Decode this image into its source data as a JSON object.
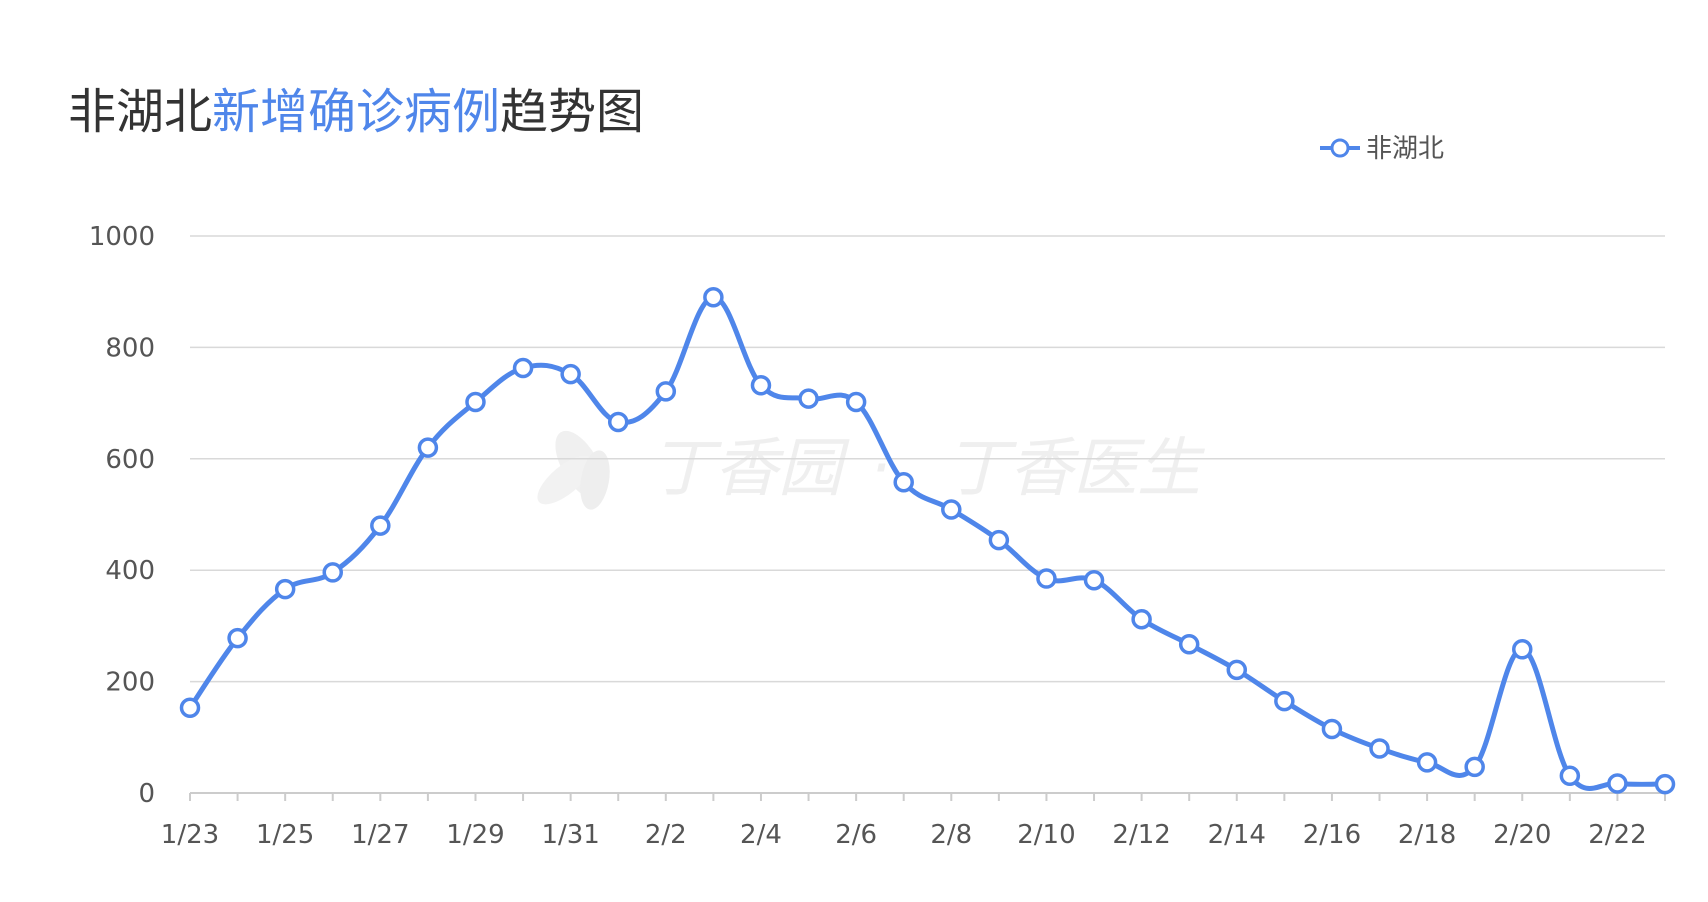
{
  "title": {
    "prefix": "非湖北",
    "highlight": "新增确诊病例",
    "suffix": "趋势图"
  },
  "legend": {
    "label": "非湖北",
    "position": "top-right"
  },
  "watermark": {
    "left": "丁香园",
    "sep": "·",
    "right": "丁香医生"
  },
  "colors": {
    "line": "#4f86ea",
    "title_highlight": "#4f86ea",
    "grid": "#d9d9d9",
    "axis": "#cccccc",
    "text": "#555555",
    "watermark": "#efefef"
  },
  "chart_data": {
    "type": "line",
    "smooth": true,
    "grid": "horizontal",
    "x": [
      "1/23",
      "1/24",
      "1/25",
      "1/26",
      "1/27",
      "1/28",
      "1/29",
      "1/30",
      "1/31",
      "2/1",
      "2/2",
      "2/3",
      "2/4",
      "2/5",
      "2/6",
      "2/7",
      "2/8",
      "2/9",
      "2/10",
      "2/11",
      "2/12",
      "2/13",
      "2/14",
      "2/15",
      "2/16",
      "2/17",
      "2/18",
      "2/19",
      "2/20",
      "2/21",
      "2/22",
      "2/23"
    ],
    "x_tick_labels": [
      "1/23",
      "1/25",
      "1/27",
      "1/29",
      "1/31",
      "2/2",
      "2/4",
      "2/6",
      "2/8",
      "2/10",
      "2/12",
      "2/14",
      "2/16",
      "2/18",
      "2/20",
      "2/22"
    ],
    "series": [
      {
        "name": "非湖北",
        "values": [
          153,
          278,
          366,
          396,
          480,
          620,
          702,
          763,
          752,
          666,
          721,
          890,
          732,
          708,
          702,
          558,
          509,
          454,
          385,
          382,
          312,
          267,
          221,
          165,
          115,
          80,
          55,
          47,
          258,
          31,
          17,
          16
        ]
      }
    ],
    "ylim": [
      0,
      1000
    ],
    "y_ticks": [
      "0",
      "200",
      "400",
      "600",
      "800",
      "1000"
    ],
    "title": "非湖北新增确诊病例趋势图",
    "xlabel": "",
    "ylabel": ""
  }
}
